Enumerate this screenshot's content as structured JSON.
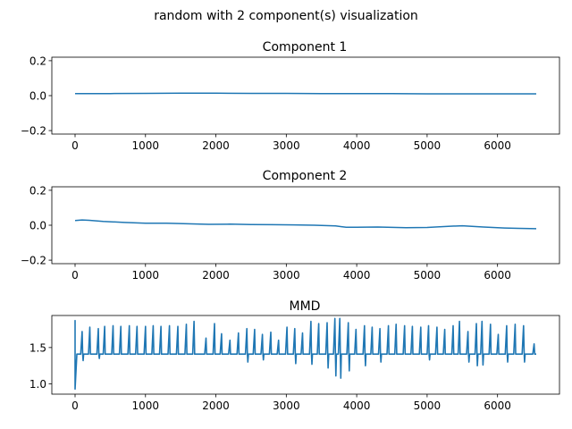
{
  "figure_title": "random with 2 component(s) visualization",
  "line_color": "#1f77b4",
  "chart_data": [
    {
      "type": "line",
      "title": "Component 1",
      "xlabel": "",
      "ylabel": "",
      "xlim": [
        -330,
        6880
      ],
      "ylim": [
        -0.22,
        0.22
      ],
      "xticks": [
        0,
        1000,
        2000,
        3000,
        4000,
        5000,
        6000
      ],
      "yticks": [
        -0.2,
        0.0,
        0.2
      ],
      "ytick_labels": [
        "−0.2",
        "0.0",
        "0.2"
      ],
      "grid": false,
      "series": [
        {
          "x": [
            0,
            500,
            1000,
            1500,
            2000,
            2500,
            3000,
            3500,
            4000,
            4500,
            5000,
            5500,
            6000,
            6550
          ],
          "y": [
            0.011,
            0.012,
            0.013,
            0.014,
            0.014,
            0.013,
            0.013,
            0.012,
            0.012,
            0.011,
            0.01,
            0.01,
            0.01,
            0.01
          ]
        }
      ]
    },
    {
      "type": "line",
      "title": "Component 2",
      "xlabel": "",
      "ylabel": "",
      "xlim": [
        -330,
        6880
      ],
      "ylim": [
        -0.22,
        0.22
      ],
      "xticks": [
        0,
        1000,
        2000,
        3000,
        4000,
        5000,
        6000
      ],
      "yticks": [
        -0.2,
        0.0,
        0.2
      ],
      "ytick_labels": [
        "−0.2",
        "0.0",
        "0.2"
      ],
      "grid": false,
      "series": [
        {
          "x": [
            0,
            100,
            200,
            400,
            700,
            1000,
            1300,
            1600,
            1900,
            2200,
            2500,
            2800,
            3100,
            3400,
            3700,
            3850,
            4000,
            4300,
            4700,
            5000,
            5300,
            5500,
            5800,
            6100,
            6300,
            6550
          ],
          "y": [
            0.027,
            0.03,
            0.028,
            0.022,
            0.016,
            0.012,
            0.011,
            0.008,
            0.005,
            0.006,
            0.004,
            0.003,
            0.002,
            0.0,
            -0.004,
            -0.012,
            -0.012,
            -0.01,
            -0.014,
            -0.013,
            -0.006,
            -0.003,
            -0.01,
            -0.016,
            -0.018,
            -0.02
          ]
        }
      ]
    },
    {
      "type": "line",
      "title": "MMD",
      "xlabel": "",
      "ylabel": "",
      "xlim": [
        -330,
        6880
      ],
      "ylim": [
        0.86,
        1.94
      ],
      "xticks": [
        0,
        1000,
        2000,
        3000,
        4000,
        5000,
        6000
      ],
      "yticks": [
        1.0,
        1.5
      ],
      "ytick_labels": [
        "1.0",
        "1.5"
      ],
      "grid": false,
      "series": [
        {
          "baseline": 1.41,
          "start_spike_high": 1.87,
          "start_spike_low": 0.93,
          "spikes": [
            {
              "x": 100,
              "y": 1.72
            },
            {
              "x": 210,
              "y": 1.78
            },
            {
              "x": 330,
              "y": 1.76
            },
            {
              "x": 420,
              "y": 1.79
            },
            {
              "x": 540,
              "y": 1.8
            },
            {
              "x": 650,
              "y": 1.79
            },
            {
              "x": 770,
              "y": 1.8
            },
            {
              "x": 880,
              "y": 1.79
            },
            {
              "x": 1000,
              "y": 1.79
            },
            {
              "x": 1110,
              "y": 1.8
            },
            {
              "x": 1220,
              "y": 1.79
            },
            {
              "x": 1340,
              "y": 1.8
            },
            {
              "x": 1460,
              "y": 1.79
            },
            {
              "x": 1580,
              "y": 1.82
            },
            {
              "x": 1690,
              "y": 1.86
            },
            {
              "x": 1860,
              "y": 1.63
            },
            {
              "x": 1980,
              "y": 1.83
            },
            {
              "x": 2080,
              "y": 1.69
            },
            {
              "x": 2200,
              "y": 1.6
            },
            {
              "x": 2320,
              "y": 1.7
            },
            {
              "x": 2440,
              "y": 1.76
            },
            {
              "x": 2550,
              "y": 1.75
            },
            {
              "x": 2660,
              "y": 1.68
            },
            {
              "x": 2780,
              "y": 1.71
            },
            {
              "x": 2890,
              "y": 1.6
            },
            {
              "x": 3010,
              "y": 1.78
            },
            {
              "x": 3120,
              "y": 1.76
            },
            {
              "x": 3230,
              "y": 1.7
            },
            {
              "x": 3350,
              "y": 1.86
            },
            {
              "x": 3460,
              "y": 1.83
            },
            {
              "x": 3580,
              "y": 1.84
            },
            {
              "x": 3690,
              "y": 1.9
            },
            {
              "x": 3760,
              "y": 1.9
            },
            {
              "x": 3880,
              "y": 1.84
            },
            {
              "x": 3990,
              "y": 1.75
            },
            {
              "x": 4110,
              "y": 1.8
            },
            {
              "x": 4220,
              "y": 1.78
            },
            {
              "x": 4330,
              "y": 1.76
            },
            {
              "x": 4450,
              "y": 1.8
            },
            {
              "x": 4560,
              "y": 1.82
            },
            {
              "x": 4680,
              "y": 1.8
            },
            {
              "x": 4790,
              "y": 1.79
            },
            {
              "x": 4910,
              "y": 1.78
            },
            {
              "x": 5020,
              "y": 1.8
            },
            {
              "x": 5140,
              "y": 1.78
            },
            {
              "x": 5250,
              "y": 1.75
            },
            {
              "x": 5370,
              "y": 1.8
            },
            {
              "x": 5460,
              "y": 1.86
            },
            {
              "x": 5580,
              "y": 1.72
            },
            {
              "x": 5700,
              "y": 1.83
            },
            {
              "x": 5780,
              "y": 1.86
            },
            {
              "x": 5900,
              "y": 1.82
            },
            {
              "x": 6010,
              "y": 1.68
            },
            {
              "x": 6130,
              "y": 1.8
            },
            {
              "x": 6250,
              "y": 1.82
            },
            {
              "x": 6370,
              "y": 1.8
            },
            {
              "x": 6520,
              "y": 1.55
            }
          ],
          "dips": [
            {
              "x": 100,
              "y": 1.32
            },
            {
              "x": 330,
              "y": 1.35
            },
            {
              "x": 2440,
              "y": 1.3
            },
            {
              "x": 2660,
              "y": 1.33
            },
            {
              "x": 3120,
              "y": 1.28
            },
            {
              "x": 3350,
              "y": 1.27
            },
            {
              "x": 3580,
              "y": 1.22
            },
            {
              "x": 3690,
              "y": 1.11
            },
            {
              "x": 3760,
              "y": 1.08
            },
            {
              "x": 3880,
              "y": 1.18
            },
            {
              "x": 4110,
              "y": 1.25
            },
            {
              "x": 4330,
              "y": 1.3
            },
            {
              "x": 5020,
              "y": 1.33
            },
            {
              "x": 5580,
              "y": 1.3
            },
            {
              "x": 5700,
              "y": 1.25
            },
            {
              "x": 5780,
              "y": 1.26
            },
            {
              "x": 6130,
              "y": 1.3
            },
            {
              "x": 6370,
              "y": 1.3
            }
          ],
          "x_end": 6550
        }
      ]
    }
  ]
}
